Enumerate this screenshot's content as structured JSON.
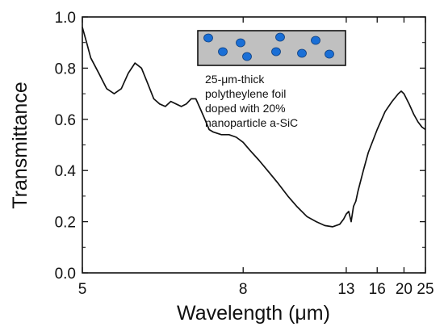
{
  "chart_data": {
    "type": "line",
    "title": "",
    "xlabel": "Wavelength (μm)",
    "ylabel": "Transmittance",
    "xscale": "reciprocal",
    "xlim": [
      5,
      25
    ],
    "ylim": [
      0.0,
      1.0
    ],
    "xticks": [
      5,
      8,
      13,
      16,
      20,
      25
    ],
    "xtick_labels": [
      "5",
      "8",
      "13",
      "16",
      "20",
      "25"
    ],
    "yticks": [
      0.0,
      0.2,
      0.4,
      0.6,
      0.8,
      1.0
    ],
    "ytick_labels": [
      "0.0",
      "0.2",
      "0.4",
      "0.6",
      "0.8",
      "1.0"
    ],
    "grid": false,
    "series": [
      {
        "color": "#111111",
        "x": [
          5.0,
          5.05,
          5.1,
          5.2,
          5.3,
          5.4,
          5.5,
          5.6,
          5.7,
          5.8,
          5.9,
          6.0,
          6.1,
          6.2,
          6.3,
          6.4,
          6.5,
          6.6,
          6.7,
          6.8,
          6.9,
          7.0,
          7.1,
          7.2,
          7.4,
          7.6,
          7.8,
          8.0,
          8.2,
          8.5,
          8.8,
          9.2,
          9.6,
          10.0,
          10.5,
          11.0,
          11.5,
          12.0,
          12.5,
          12.8,
          13.0,
          13.2,
          13.4,
          13.6,
          13.8,
          14.0,
          14.5,
          15.0,
          16.0,
          17.0,
          18.0,
          19.0,
          19.5,
          20.0,
          21.0,
          22.0,
          23.0,
          24.0,
          25.0
        ],
        "y": [
          0.96,
          0.9,
          0.84,
          0.78,
          0.72,
          0.7,
          0.72,
          0.78,
          0.82,
          0.8,
          0.74,
          0.68,
          0.66,
          0.65,
          0.67,
          0.66,
          0.65,
          0.66,
          0.68,
          0.68,
          0.64,
          0.6,
          0.56,
          0.55,
          0.54,
          0.54,
          0.53,
          0.51,
          0.48,
          0.44,
          0.4,
          0.35,
          0.3,
          0.26,
          0.22,
          0.2,
          0.185,
          0.18,
          0.19,
          0.21,
          0.23,
          0.24,
          0.2,
          0.26,
          0.28,
          0.32,
          0.4,
          0.47,
          0.56,
          0.63,
          0.67,
          0.7,
          0.71,
          0.7,
          0.66,
          0.62,
          0.59,
          0.57,
          0.56
        ]
      }
    ],
    "inset": {
      "label_lines": [
        "25-μm-thick",
        "polytheylene foil",
        "doped with 20%",
        "nanoparticle a-SiC"
      ],
      "panel_color": "#c0c0c0",
      "particle_color": "#1a6fd6"
    }
  }
}
